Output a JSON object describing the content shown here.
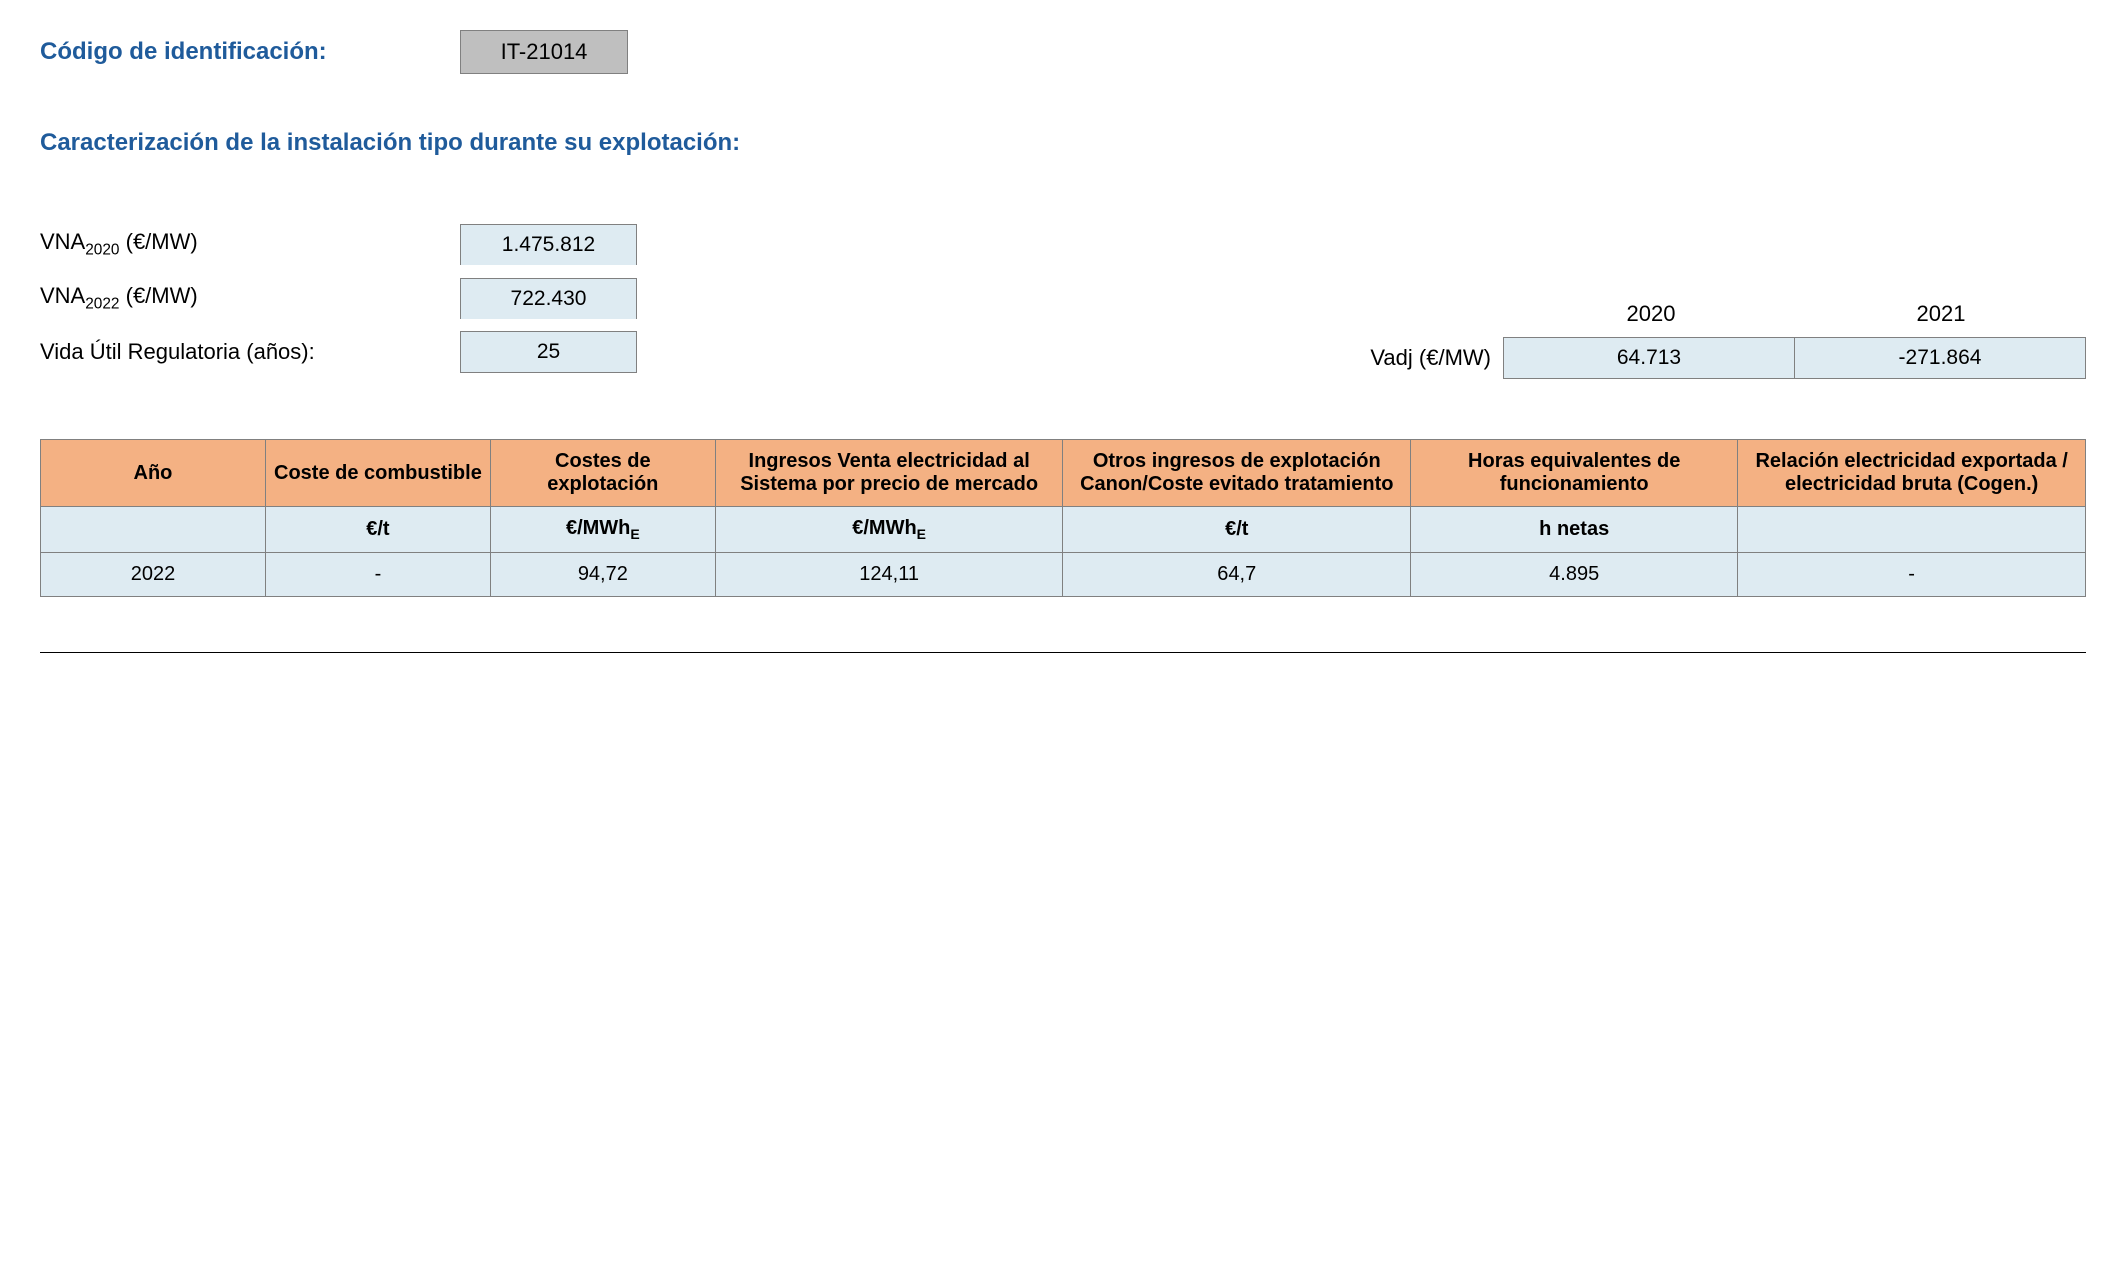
{
  "header": {
    "label": "Código de identificación:",
    "code": "IT-21014"
  },
  "section_title": "Caracterización de la instalación tipo durante su explotación:",
  "params": {
    "vna2020_label_prefix": "VNA",
    "vna2020_label_sub": "2020",
    "vna2020_label_suffix": " (€/MW)",
    "vna2020_value": "1.475.812",
    "vna2022_label_prefix": "VNA",
    "vna2022_label_sub": "2022",
    "vna2022_label_suffix": " (€/MW)",
    "vna2022_value": "722.430",
    "vida_label": "Vida Útil Regulatoria (años):",
    "vida_value": "25"
  },
  "vadj": {
    "label": "Vadj (€/MW)",
    "years": [
      "2020",
      "2021"
    ],
    "values": [
      "64.713",
      "-271.864"
    ]
  },
  "table": {
    "header_bg": "#f4b183",
    "cell_bg": "#deebf2",
    "border_color": "#808080",
    "columns": [
      "Año",
      "Coste de combustible",
      "Costes de explotación",
      "Ingresos Venta electricidad al Sistema por precio de mercado",
      "Otros ingresos de explotación Canon/Coste evitado tratamiento",
      "Horas equivalentes de funcionamiento",
      "Relación electricidad exportada / electricidad bruta (Cogen.)"
    ],
    "units": [
      "",
      "€/t",
      "€/MWh_E",
      "€/MWh_E",
      "€/t",
      "h netas",
      ""
    ],
    "rows": [
      [
        "2022",
        "-",
        "94,72",
        "124,11",
        "64,7",
        "4.895",
        "-"
      ]
    ],
    "col_widths": [
      "11%",
      "11%",
      "11%",
      "17%",
      "17%",
      "16%",
      "17%"
    ]
  },
  "colors": {
    "heading": "#1f5b9b",
    "code_box_bg": "#bfbfbf",
    "param_box_bg": "#deebf2"
  }
}
